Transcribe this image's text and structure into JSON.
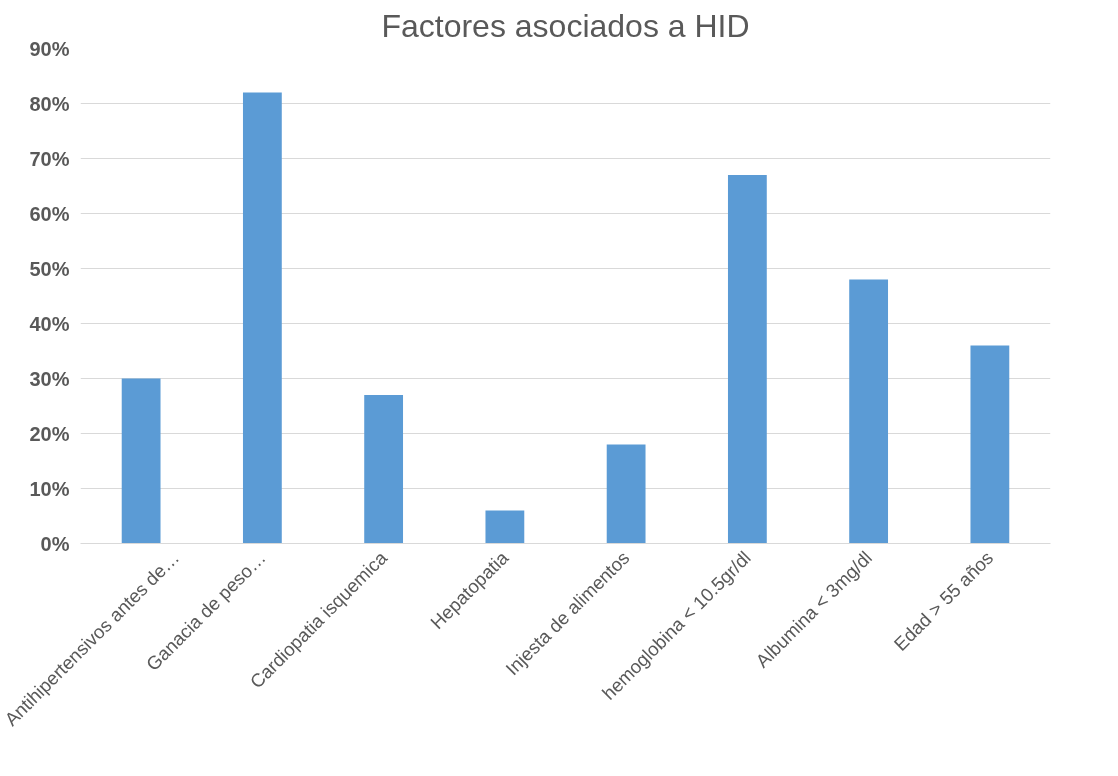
{
  "chart_data": {
    "type": "bar",
    "title": "Factores asociados a HID",
    "categories": [
      "Antihipertensivos antes de…",
      "Ganacia de peso…",
      "Cardiopatia isquemica",
      "Hepatopatia",
      "Injesta de alimentos",
      "hemoglobina < 10.5gr/dl",
      "Albumina < 3mg/dl",
      "Edad > 55 años"
    ],
    "values": [
      30,
      82,
      27,
      6,
      18,
      67,
      48,
      36
    ],
    "color": "#5b9bd5",
    "ylim": [
      0,
      90
    ],
    "yticks": [
      {
        "value": 0,
        "label": "0%"
      },
      {
        "value": 10,
        "label": "10%"
      },
      {
        "value": 20,
        "label": "20%"
      },
      {
        "value": 30,
        "label": "30%"
      },
      {
        "value": 40,
        "label": "40%"
      },
      {
        "value": 50,
        "label": "50%"
      },
      {
        "value": 60,
        "label": "60%"
      },
      {
        "value": 70,
        "label": "70%"
      },
      {
        "value": 80,
        "label": "80%"
      },
      {
        "value": 90,
        "label": "90%"
      }
    ],
    "grid": "y"
  }
}
